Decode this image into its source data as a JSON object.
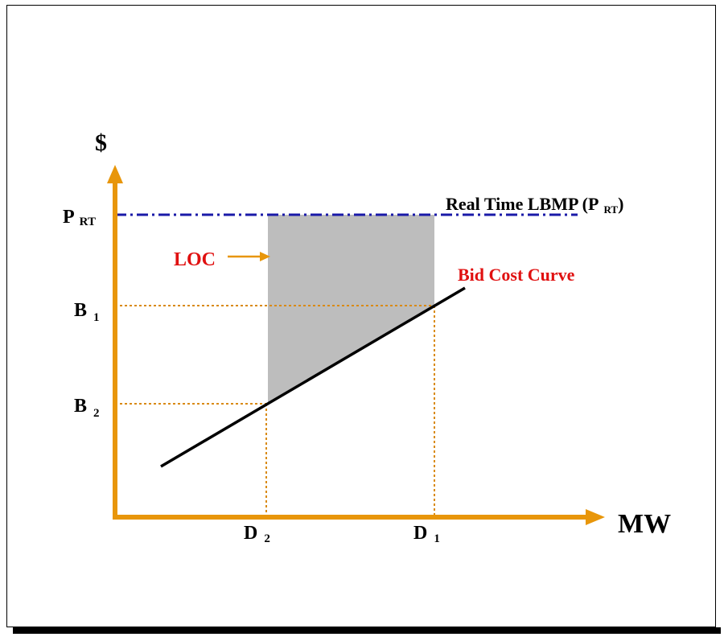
{
  "colors": {
    "axis": "#e8960a",
    "guide": "#d98a12",
    "rt_line": "#1a1aa8",
    "bid_curve": "#000000",
    "loc_fill": "#bdbdbd",
    "red_label": "#e01010",
    "text": "#000000"
  },
  "labels": {
    "y_axis": "$",
    "x_axis": "MW",
    "p_rt_main": "P",
    "p_rt_sub": "RT",
    "b1_main": "B",
    "b1_sub": "1",
    "b2_main": "B",
    "b2_sub": "2",
    "d1_main": "D",
    "d1_sub": "1",
    "d2_main": "D",
    "d2_sub": "2",
    "rt_lbmp_main": "Real Time LBMP (P",
    "rt_lbmp_sub": "RT",
    "rt_lbmp_close": ")",
    "loc": "LOC",
    "bid_cost_curve": "Bid Cost Curve"
  }
}
